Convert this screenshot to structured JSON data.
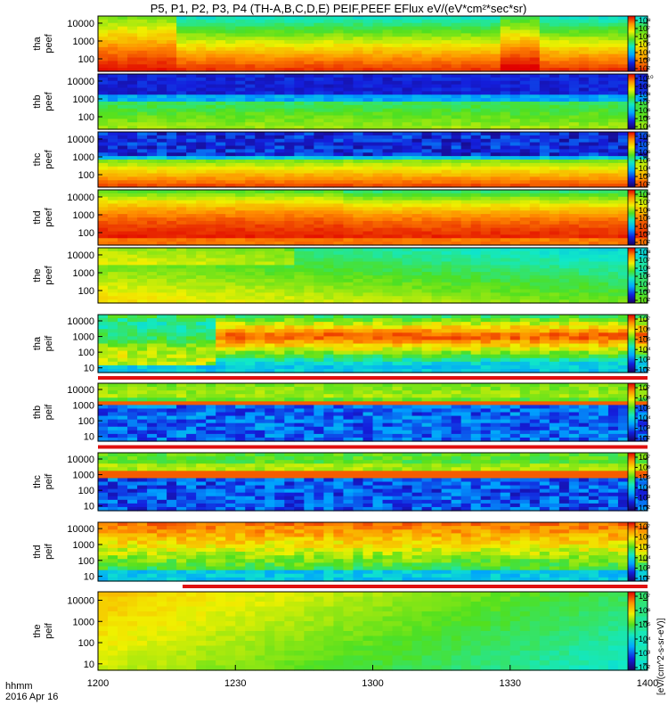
{
  "title": "P5, P1, P2, P3, P4 (TH-A,B,C,D,E) PEIF,PEEF EFlux eV/(eV*cm²*sec*sr)",
  "time_axis": {
    "ticks": [
      "1200",
      "1230",
      "1300",
      "1330",
      "1400"
    ],
    "label_line1": "hhmm",
    "label_line2": "2016 Apr 16"
  },
  "colorbar_unit_text": "[eV/(cm^2-s-sr-eV)]",
  "colors": {
    "frame": "#000000",
    "background": "#ffffff",
    "gap_stripe": "#e01010"
  },
  "chart_data": [
    {
      "type": "heatmap",
      "probe": "tha",
      "species": "peef",
      "ylabel_probe": "tha",
      "ylabel_species": "peef",
      "yscale": "log",
      "ylim": [
        20,
        25000
      ],
      "ytick_labels": [
        "10000",
        "1000",
        "100"
      ],
      "ytick_values": [
        10000,
        1000,
        100
      ],
      "colorbar": {
        "scale": "log",
        "tick_labels": [
          "10⁸",
          "10⁷",
          "10⁶",
          "10⁵",
          "10⁴",
          "10³",
          "10²"
        ]
      },
      "xlim": [
        "1200",
        "1400"
      ],
      "profile": "tha_e"
    },
    {
      "type": "heatmap",
      "probe": "thb",
      "species": "peef",
      "ylabel_probe": "thb",
      "ylabel_species": "peef",
      "yscale": "log",
      "ylim": [
        20,
        25000
      ],
      "ytick_labels": [
        "10000",
        "1000",
        "100"
      ],
      "ytick_values": [
        10000,
        1000,
        100
      ],
      "colorbar": {
        "scale": "log",
        "tick_labels": [
          "10¹⁰",
          "10⁹",
          "10⁸",
          "10⁷",
          "10⁶",
          "10⁵",
          "10⁴"
        ]
      },
      "xlim": [
        "1200",
        "1400"
      ],
      "profile": "thb_e"
    },
    {
      "type": "heatmap",
      "probe": "thc",
      "species": "peef",
      "ylabel_probe": "thc",
      "ylabel_species": "peef",
      "yscale": "log",
      "ylim": [
        20,
        25000
      ],
      "ytick_labels": [
        "10000",
        "1000",
        "100"
      ],
      "ytick_values": [
        10000,
        1000,
        100
      ],
      "colorbar": {
        "scale": "log",
        "tick_labels": [
          "10⁸",
          "10⁷",
          "10⁶",
          "10⁵",
          "10⁴",
          "10³",
          "10²"
        ]
      },
      "xlim": [
        "1200",
        "1400"
      ],
      "profile": "thc_e"
    },
    {
      "type": "heatmap",
      "probe": "thd",
      "species": "peef",
      "ylabel_probe": "thd",
      "ylabel_species": "peef",
      "yscale": "log",
      "ylim": [
        20,
        25000
      ],
      "ytick_labels": [
        "10000",
        "1000",
        "100"
      ],
      "ytick_values": [
        10000,
        1000,
        100
      ],
      "colorbar": {
        "scale": "log",
        "tick_labels": [
          "10⁸",
          "10⁷",
          "10⁶",
          "10⁵",
          "10⁴",
          "10³",
          "10²"
        ]
      },
      "xlim": [
        "1200",
        "1400"
      ],
      "profile": "thd_e"
    },
    {
      "type": "heatmap",
      "probe": "the",
      "species": "peef",
      "ylabel_probe": "the",
      "ylabel_species": "peef",
      "yscale": "log",
      "ylim": [
        20,
        25000
      ],
      "ytick_labels": [
        "10000",
        "1000",
        "100"
      ],
      "ytick_values": [
        10000,
        1000,
        100
      ],
      "colorbar": {
        "scale": "log",
        "tick_labels": [
          "10⁸",
          "10⁷",
          "10⁶",
          "10⁵",
          "10⁴",
          "10³",
          "10²"
        ]
      },
      "xlim": [
        "1200",
        "1400"
      ],
      "profile": "the_e"
    },
    {
      "type": "heatmap",
      "probe": "tha",
      "species": "peif",
      "ylabel_probe": "tha",
      "ylabel_species": "peif",
      "yscale": "log",
      "ylim": [
        5,
        25000
      ],
      "ytick_labels": [
        "10000",
        "1000",
        "100",
        "10"
      ],
      "ytick_values": [
        10000,
        1000,
        100,
        10
      ],
      "colorbar": {
        "scale": "log",
        "tick_labels": [
          "10⁷",
          "10⁶",
          "10⁵",
          "10⁴",
          "10³",
          "10²"
        ]
      },
      "xlim": [
        "1200",
        "1400"
      ],
      "profile": "tha_i",
      "gap_below": "full"
    },
    {
      "type": "heatmap",
      "probe": "thb",
      "species": "peif",
      "ylabel_probe": "thb",
      "ylabel_species": "peif",
      "yscale": "log",
      "ylim": [
        5,
        25000
      ],
      "ytick_labels": [
        "10000",
        "1000",
        "100",
        "10"
      ],
      "ytick_values": [
        10000,
        1000,
        100,
        10
      ],
      "colorbar": {
        "scale": "log",
        "tick_labels": [
          "10⁷",
          "10⁶",
          "10⁵",
          "10⁴",
          "10³",
          "10²"
        ]
      },
      "xlim": [
        "1200",
        "1400"
      ],
      "profile": "thb_i",
      "gap_below": "full"
    },
    {
      "type": "heatmap",
      "probe": "thc",
      "species": "peif",
      "ylabel_probe": "thc",
      "ylabel_species": "peif",
      "yscale": "log",
      "ylim": [
        5,
        25000
      ],
      "ytick_labels": [
        "10000",
        "1000",
        "100",
        "10"
      ],
      "ytick_values": [
        10000,
        1000,
        100,
        10
      ],
      "colorbar": {
        "scale": "log",
        "tick_labels": [
          "10⁷",
          "10⁶",
          "10⁵",
          "10⁴",
          "10³",
          "10²"
        ]
      },
      "xlim": [
        "1200",
        "1400"
      ],
      "profile": "thc_i",
      "gap_below": "none"
    },
    {
      "type": "heatmap",
      "probe": "thd",
      "species": "peif",
      "ylabel_probe": "thd",
      "ylabel_species": "peif",
      "yscale": "log",
      "ylim": [
        5,
        25000
      ],
      "ytick_labels": [
        "10000",
        "1000",
        "100",
        "10"
      ],
      "ytick_values": [
        10000,
        1000,
        100,
        10
      ],
      "colorbar": {
        "scale": "log",
        "tick_labels": [
          "10⁷",
          "10⁶",
          "10⁵",
          "10⁴",
          "10³",
          "10²"
        ]
      },
      "xlim": [
        "1200",
        "1400"
      ],
      "profile": "thd_i",
      "gap_below": "partial"
    },
    {
      "type": "heatmap",
      "probe": "the",
      "species": "peif",
      "ylabel_probe": "the",
      "ylabel_species": "peif",
      "yscale": "log",
      "ylim": [
        5,
        25000
      ],
      "ytick_labels": [
        "10000",
        "1000",
        "100",
        "10"
      ],
      "ytick_values": [
        10000,
        1000,
        100,
        10
      ],
      "colorbar": {
        "scale": "log",
        "tick_labels": [
          "10⁷",
          "10⁶",
          "10⁵",
          "10⁴",
          "10³",
          "10²"
        ]
      },
      "xlim": [
        "1200",
        "1400"
      ],
      "profile": "the_i"
    }
  ]
}
